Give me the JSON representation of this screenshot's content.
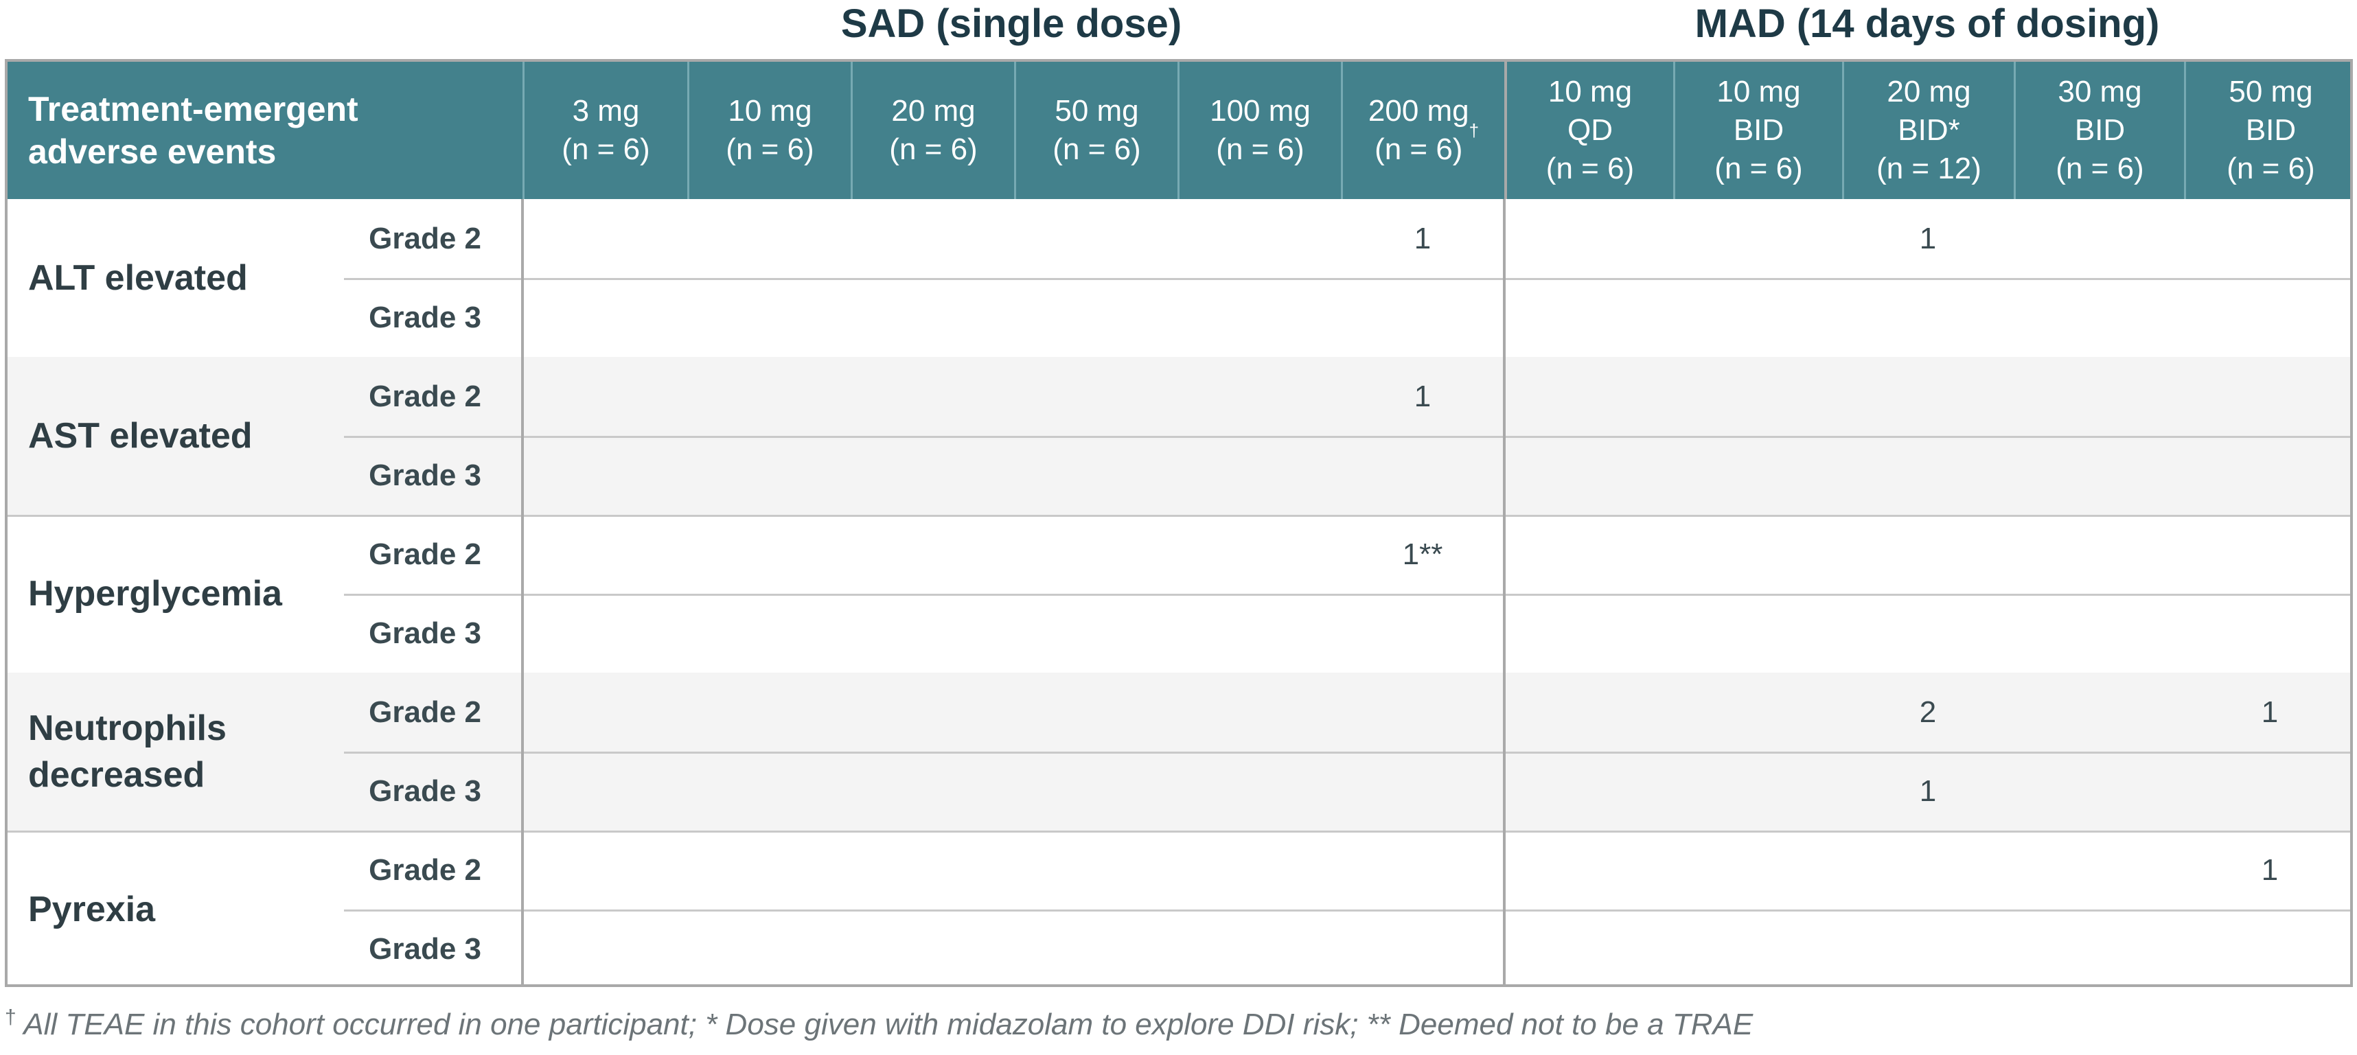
{
  "groups": {
    "sad_title": "SAD (single dose)",
    "mad_title": "MAD (14 days of dosing)"
  },
  "header": {
    "first": "Treatment-emergent\nadverse events",
    "columns": [
      {
        "label": "3 mg\n(n = 6)"
      },
      {
        "label": "10 mg\n(n = 6)"
      },
      {
        "label": "20 mg\n(n = 6)"
      },
      {
        "label": "50 mg\n(n = 6)"
      },
      {
        "label": "100 mg\n(n = 6)"
      },
      {
        "label": "200 mg\n(n = 6)",
        "sup": "†"
      },
      {
        "label": "10 mg\nQD\n(n = 6)"
      },
      {
        "label": "10 mg\nBID\n(n = 6)"
      },
      {
        "label": "20 mg\nBID*\n(n = 12)"
      },
      {
        "label": "30 mg\nBID\n(n = 6)"
      },
      {
        "label": "50 mg\nBID\n(n = 6)"
      }
    ]
  },
  "events": [
    {
      "name": "ALT elevated",
      "grades": [
        {
          "label": "Grade 2",
          "values": [
            "",
            "",
            "",
            "",
            "",
            "1",
            "",
            "",
            "1",
            "",
            ""
          ]
        },
        {
          "label": "Grade 3",
          "values": [
            "",
            "",
            "",
            "",
            "",
            "",
            "",
            "",
            "",
            "",
            ""
          ]
        }
      ]
    },
    {
      "name": "AST elevated",
      "grades": [
        {
          "label": "Grade 2",
          "values": [
            "",
            "",
            "",
            "",
            "",
            "1",
            "",
            "",
            "",
            "",
            ""
          ]
        },
        {
          "label": "Grade 3",
          "values": [
            "",
            "",
            "",
            "",
            "",
            "",
            "",
            "",
            "",
            "",
            ""
          ]
        }
      ]
    },
    {
      "name": "Hyperglycemia",
      "grades": [
        {
          "label": "Grade 2",
          "values": [
            "",
            "",
            "",
            "",
            "",
            "1**",
            "",
            "",
            "",
            "",
            ""
          ]
        },
        {
          "label": "Grade 3",
          "values": [
            "",
            "",
            "",
            "",
            "",
            "",
            "",
            "",
            "",
            "",
            ""
          ]
        }
      ]
    },
    {
      "name": "Neutrophils\ndecreased",
      "grades": [
        {
          "label": "Grade 2",
          "values": [
            "",
            "",
            "",
            "",
            "",
            "",
            "",
            "",
            "2",
            "",
            "1"
          ]
        },
        {
          "label": "Grade 3",
          "values": [
            "",
            "",
            "",
            "",
            "",
            "",
            "",
            "",
            "1",
            "",
            ""
          ]
        }
      ]
    },
    {
      "name": "Pyrexia",
      "grades": [
        {
          "label": "Grade 2",
          "values": [
            "",
            "",
            "",
            "",
            "",
            "",
            "",
            "",
            "",
            "",
            "1"
          ]
        },
        {
          "label": "Grade 3",
          "values": [
            "",
            "",
            "",
            "",
            "",
            "",
            "",
            "",
            "",
            "",
            ""
          ]
        }
      ]
    }
  ],
  "footnote": {
    "dagger": "†",
    "text": "All TEAE in this cohort occurred in one participant; * Dose given with midazolam to explore DDI risk; ** Deemed not to be a TRAE"
  }
}
